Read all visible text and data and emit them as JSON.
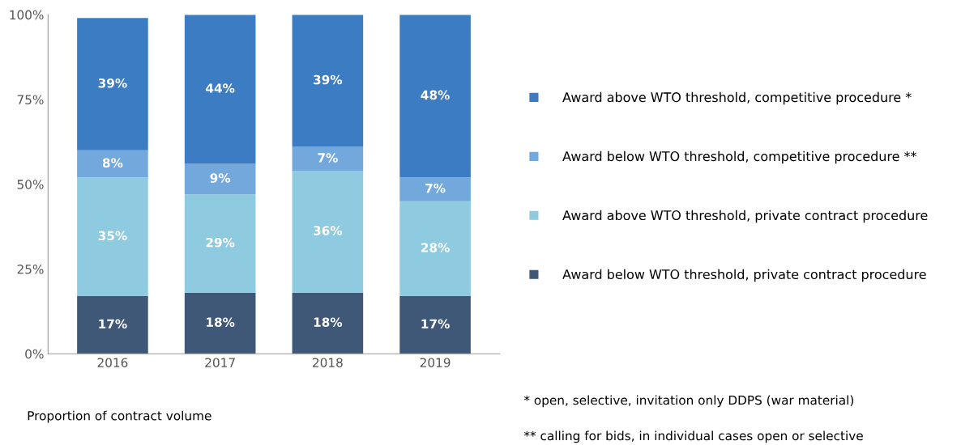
{
  "chart_data": {
    "type": "bar",
    "stacked": true,
    "categories": [
      "2016",
      "2017",
      "2018",
      "2019"
    ],
    "series": [
      {
        "name": "Award below WTO threshold, private contract procedure",
        "color": "#3f5878",
        "values": [
          17,
          18,
          18,
          17
        ],
        "value_labels": [
          "17%",
          "18%",
          "18%",
          "17%"
        ]
      },
      {
        "name": "Award above WTO threshold, private contract procedure",
        "color": "#8ecae0",
        "values": [
          35,
          29,
          36,
          28
        ],
        "value_labels": [
          "35%",
          "29%",
          "36%",
          "28%"
        ]
      },
      {
        "name": "Award below WTO threshold, competitive procedure **",
        "color": "#73a8dc",
        "values": [
          8,
          9,
          7,
          7
        ],
        "value_labels": [
          "8%",
          "9%",
          "7%",
          "7%"
        ]
      },
      {
        "name": "Award above WTO threshold, competitive procedure *",
        "color": "#3c7cc3",
        "values": [
          39,
          44,
          39,
          48
        ],
        "value_labels": [
          "39%",
          "44%",
          "39%",
          "48%"
        ]
      }
    ],
    "ylim": [
      0,
      100
    ],
    "yticks": [
      {
        "value": 0,
        "label": "0%"
      },
      {
        "value": 25,
        "label": "25%"
      },
      {
        "value": 50,
        "label": "50%"
      },
      {
        "value": 75,
        "label": "75%"
      },
      {
        "value": 100,
        "label": "100%"
      }
    ],
    "grid": false,
    "legend": "right",
    "marker": "square",
    "annotations": [
      "Proportion of contract volume",
      "* open, selective, invitation only DDPS (war material)",
      "** calling for bids, in individual cases open or selective"
    ]
  }
}
